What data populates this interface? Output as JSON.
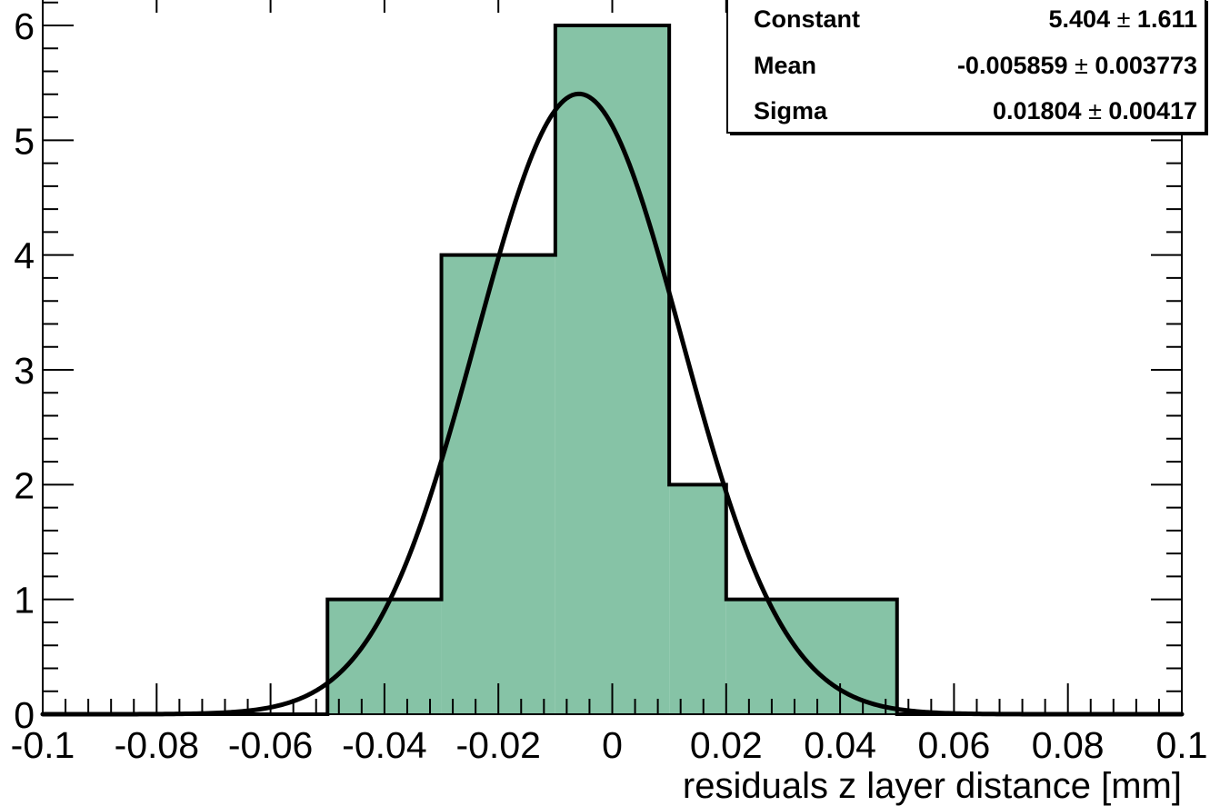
{
  "chart_data": {
    "type": "bar",
    "subtype": "histogram_with_gaussian_fit",
    "xlabel": "residuals z layer distance [mm]",
    "ylabel": "",
    "xlim": [
      -0.1,
      0.1
    ],
    "ylim": [
      0,
      6
    ],
    "x_tick_labels": [
      "-0.1",
      "-0.08",
      "-0.06",
      "-0.04",
      "-0.02",
      "0",
      "0.02",
      "0.04",
      "0.06",
      "0.08",
      "0.1"
    ],
    "x_tick_values": [
      -0.1,
      -0.08,
      -0.06,
      -0.04,
      -0.02,
      0,
      0.02,
      0.04,
      0.06,
      0.08,
      0.1
    ],
    "y_tick_labels": [
      "0",
      "1",
      "2",
      "3",
      "4",
      "5",
      "6"
    ],
    "y_tick_values": [
      0,
      1,
      2,
      3,
      4,
      5,
      6
    ],
    "bin_edges": [
      -0.1,
      -0.07,
      -0.05,
      -0.03,
      -0.01,
      0.01,
      0.02,
      0.05,
      0.1
    ],
    "counts": [
      0,
      0,
      1,
      4,
      6,
      2,
      1,
      0
    ],
    "fill_color": "#86c3a6",
    "line_color": "#000000",
    "fit": {
      "function": "gaus",
      "constant": 5.404,
      "mean": -0.005859,
      "sigma": 0.01804
    },
    "stats_box": {
      "placement": "top-right",
      "rows": [
        {
          "label": "Constant",
          "value": "5.404",
          "sep": "±",
          "error": "1.611"
        },
        {
          "label": "Mean",
          "value": "-0.005859",
          "sep": "±",
          "error": "0.003773"
        },
        {
          "label": "Sigma",
          "value": "0.01804",
          "sep": "±",
          "error": "0.00417"
        }
      ]
    }
  }
}
